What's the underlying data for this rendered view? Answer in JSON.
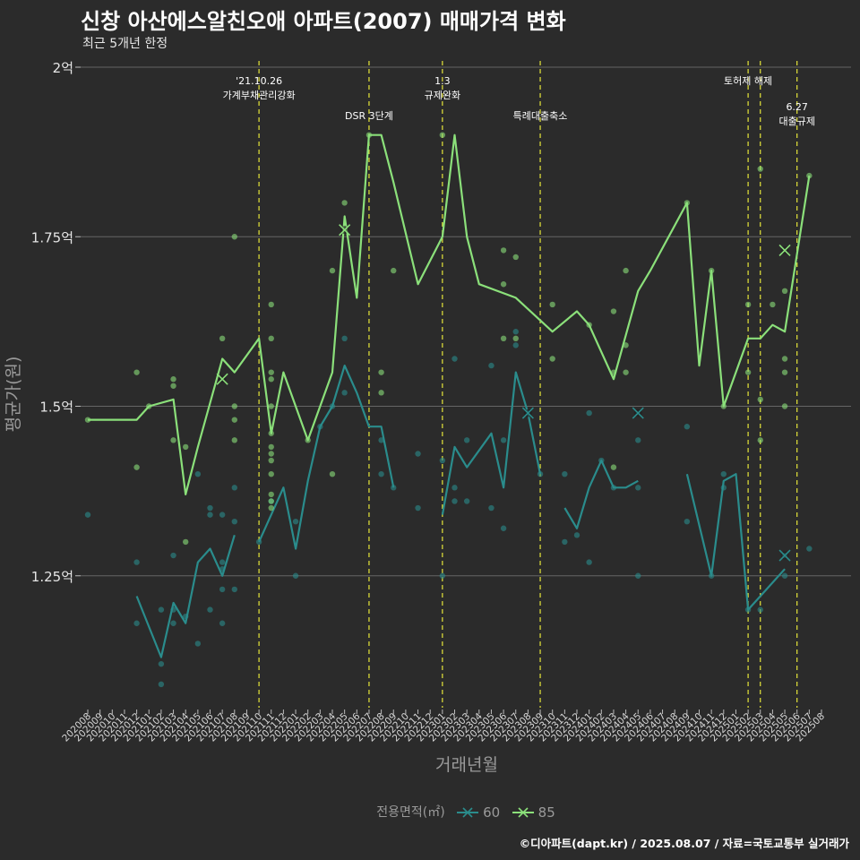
{
  "title": "신창 아산에스알친오애 아파트(2007) 매매가격 변화",
  "subtitle": "최근 5개년 한정",
  "caption": "©디아파트(dapt.kr) / 2025.08.07 / 자료=국토교통부 실거래가",
  "chart_data": {
    "type": "line",
    "xlabel": "거래년월",
    "ylabel": "평균가(원)",
    "x": [
      "202008",
      "202009",
      "202010",
      "202011",
      "202012",
      "202101",
      "202102",
      "202103",
      "202104",
      "202105",
      "202106",
      "202107",
      "202108",
      "202109",
      "202110",
      "202111",
      "202112",
      "202201",
      "202202",
      "202203",
      "202204",
      "202205",
      "202206",
      "202207",
      "202208",
      "202209",
      "202210",
      "202211",
      "202212",
      "202301",
      "202302",
      "202303",
      "202304",
      "202305",
      "202306",
      "202307",
      "202308",
      "202309",
      "202310",
      "202311",
      "202312",
      "202401",
      "202402",
      "202403",
      "202404",
      "202405",
      "202406",
      "202407",
      "202408",
      "202409",
      "202410",
      "202411",
      "202412",
      "202501",
      "202502",
      "202503",
      "202504",
      "202505",
      "202506",
      "202507",
      "202508"
    ],
    "yticks": [
      1.25,
      1.5,
      1.75,
      2.0
    ],
    "ytick_labels": [
      "1.25억",
      "1.5억",
      "1.75억",
      "2억"
    ],
    "ylim": [
      1.06,
      2.0
    ],
    "grid": true,
    "legend": {
      "title": "전용면적(㎡)",
      "placement": "bottom"
    },
    "colors": {
      "60": "#2a8c8c",
      "85": "#8be07a",
      "vline": "#e6e63a",
      "grid": "#666666"
    },
    "series": [
      {
        "name": "60",
        "line": [
          [
            [
              "202012",
              1.22
            ],
            [
              "202102",
              1.13
            ],
            [
              "202103",
              1.21
            ],
            [
              "202104",
              1.18
            ],
            [
              "202105",
              1.27
            ],
            [
              "202106",
              1.29
            ],
            [
              "202107",
              1.25
            ],
            [
              "202108",
              1.31
            ]
          ],
          [
            [
              "202110",
              1.3
            ],
            [
              "202112",
              1.38
            ],
            [
              "202201",
              1.29
            ],
            [
              "202202",
              1.39
            ],
            [
              "202203",
              1.47
            ],
            [
              "202204",
              1.5
            ],
            [
              "202205",
              1.56
            ],
            [
              "202206",
              1.52
            ],
            [
              "202207",
              1.47
            ],
            [
              "202208",
              1.47
            ],
            [
              "202209",
              1.38
            ]
          ],
          [
            [
              "202301",
              1.34
            ],
            [
              "202302",
              1.44
            ],
            [
              "202303",
              1.41
            ],
            [
              "202305",
              1.46
            ],
            [
              "202306",
              1.38
            ],
            [
              "202307",
              1.55
            ],
            [
              "202308",
              1.49
            ],
            [
              "202309",
              1.4
            ]
          ],
          [
            [
              "202311",
              1.35
            ],
            [
              "202312",
              1.32
            ],
            [
              "202401",
              1.38
            ],
            [
              "202402",
              1.42
            ],
            [
              "202403",
              1.38
            ],
            [
              "202404",
              1.38
            ],
            [
              "202405",
              1.39
            ]
          ],
          [
            [
              "202409",
              1.4
            ],
            [
              "202411",
              1.25
            ],
            [
              "202412",
              1.39
            ],
            [
              "202501",
              1.4
            ],
            [
              "202502",
              1.2
            ],
            [
              "202505",
              1.26
            ]
          ]
        ],
        "points": [
          [
            "202008",
            1.34
          ],
          [
            "202012",
            1.27
          ],
          [
            "202012",
            1.18
          ],
          [
            "202102",
            1.2
          ],
          [
            "202102",
            1.12
          ],
          [
            "202102",
            1.09
          ],
          [
            "202103",
            1.28
          ],
          [
            "202103",
            1.2
          ],
          [
            "202103",
            1.18
          ],
          [
            "202104",
            1.19
          ],
          [
            "202105",
            1.4
          ],
          [
            "202105",
            1.15
          ],
          [
            "202106",
            1.35
          ],
          [
            "202106",
            1.34
          ],
          [
            "202106",
            1.2
          ],
          [
            "202107",
            1.34
          ],
          [
            "202107",
            1.27
          ],
          [
            "202107",
            1.26
          ],
          [
            "202107",
            1.23
          ],
          [
            "202107",
            1.18
          ],
          [
            "202108",
            1.38
          ],
          [
            "202108",
            1.33
          ],
          [
            "202108",
            1.23
          ],
          [
            "202110",
            1.3
          ],
          [
            "202111",
            1.36
          ],
          [
            "202201",
            1.33
          ],
          [
            "202201",
            1.25
          ],
          [
            "202203",
            1.47
          ],
          [
            "202204",
            1.5
          ],
          [
            "202205",
            1.6
          ],
          [
            "202205",
            1.52
          ],
          [
            "202208",
            1.45
          ],
          [
            "202208",
            1.4
          ],
          [
            "202209",
            1.38
          ],
          [
            "202211",
            1.43
          ],
          [
            "202211",
            1.35
          ],
          [
            "202301",
            1.42
          ],
          [
            "202301",
            1.25
          ],
          [
            "202302",
            1.57
          ],
          [
            "202302",
            1.38
          ],
          [
            "202302",
            1.36
          ],
          [
            "202303",
            1.45
          ],
          [
            "202303",
            1.36
          ],
          [
            "202305",
            1.56
          ],
          [
            "202305",
            1.35
          ],
          [
            "202306",
            1.45
          ],
          [
            "202306",
            1.32
          ],
          [
            "202307",
            1.61
          ],
          [
            "202307",
            1.59
          ],
          [
            "202309",
            1.4
          ],
          [
            "202311",
            1.4
          ],
          [
            "202311",
            1.3
          ],
          [
            "202312",
            1.31
          ],
          [
            "202401",
            1.49
          ],
          [
            "202401",
            1.27
          ],
          [
            "202402",
            1.42
          ],
          [
            "202403",
            1.38
          ],
          [
            "202405",
            1.45
          ],
          [
            "202405",
            1.38
          ],
          [
            "202405",
            1.25
          ],
          [
            "202409",
            1.47
          ],
          [
            "202409",
            1.33
          ],
          [
            "202411",
            1.25
          ],
          [
            "202412",
            1.4
          ],
          [
            "202412",
            1.38
          ],
          [
            "202502",
            1.2
          ],
          [
            "202503",
            1.2
          ],
          [
            "202505",
            1.28
          ],
          [
            "202505",
            1.25
          ],
          [
            "202507",
            1.29
          ]
        ],
        "cross_points": [
          [
            "202308",
            1.49
          ],
          [
            "202405",
            1.49
          ],
          [
            "202505",
            1.28
          ]
        ]
      },
      {
        "name": "85",
        "line": [
          [
            [
              "202008",
              1.48
            ],
            [
              "202011",
              1.48
            ],
            [
              "202012",
              1.48
            ],
            [
              "202101",
              1.5
            ],
            [
              "202103",
              1.51
            ],
            [
              "202104",
              1.37
            ],
            [
              "202105",
              1.44
            ],
            [
              "202107",
              1.57
            ],
            [
              "202108",
              1.55
            ],
            [
              "202110",
              1.6
            ],
            [
              "202111",
              1.46
            ],
            [
              "202112",
              1.55
            ],
            [
              "202202",
              1.45
            ],
            [
              "202204",
              1.55
            ],
            [
              "202205",
              1.78
            ],
            [
              "202206",
              1.66
            ],
            [
              "202207",
              1.9
            ],
            [
              "202208",
              1.9
            ],
            [
              "202209",
              1.83
            ],
            [
              "202211",
              1.68
            ],
            [
              "202301",
              1.75
            ],
            [
              "202302",
              1.9
            ],
            [
              "202303",
              1.75
            ],
            [
              "202304",
              1.68
            ],
            [
              "202307",
              1.66
            ],
            [
              "202310",
              1.61
            ],
            [
              "202312",
              1.64
            ],
            [
              "202401",
              1.62
            ],
            [
              "202403",
              1.54
            ],
            [
              "202405",
              1.67
            ],
            [
              "202406",
              1.7
            ],
            [
              "202409",
              1.8
            ],
            [
              "202410",
              1.56
            ],
            [
              "202411",
              1.7
            ],
            [
              "202412",
              1.5
            ],
            [
              "202502",
              1.6
            ],
            [
              "202503",
              1.6
            ],
            [
              "202504",
              1.62
            ],
            [
              "202505",
              1.61
            ],
            [
              "202507",
              1.84
            ]
          ]
        ],
        "points": [
          [
            "202008",
            1.48
          ],
          [
            "202012",
            1.55
          ],
          [
            "202012",
            1.41
          ],
          [
            "202101",
            1.5
          ],
          [
            "202103",
            1.54
          ],
          [
            "202103",
            1.53
          ],
          [
            "202103",
            1.45
          ],
          [
            "202104",
            1.44
          ],
          [
            "202104",
            1.3
          ],
          [
            "202107",
            1.6
          ],
          [
            "202108",
            1.75
          ],
          [
            "202108",
            1.5
          ],
          [
            "202108",
            1.48
          ],
          [
            "202108",
            1.45
          ],
          [
            "202111",
            1.65
          ],
          [
            "202111",
            1.6
          ],
          [
            "202111",
            1.55
          ],
          [
            "202111",
            1.54
          ],
          [
            "202111",
            1.5
          ],
          [
            "202111",
            1.46
          ],
          [
            "202111",
            1.44
          ],
          [
            "202111",
            1.43
          ],
          [
            "202111",
            1.42
          ],
          [
            "202111",
            1.4
          ],
          [
            "202111",
            1.37
          ],
          [
            "202111",
            1.36
          ],
          [
            "202111",
            1.35
          ],
          [
            "202202",
            1.45
          ],
          [
            "202204",
            1.7
          ],
          [
            "202204",
            1.4
          ],
          [
            "202205",
            1.8
          ],
          [
            "202207",
            1.9
          ],
          [
            "202208",
            1.55
          ],
          [
            "202208",
            1.52
          ],
          [
            "202209",
            1.7
          ],
          [
            "202301",
            1.9
          ],
          [
            "202306",
            1.73
          ],
          [
            "202306",
            1.68
          ],
          [
            "202306",
            1.6
          ],
          [
            "202307",
            1.72
          ],
          [
            "202307",
            1.6
          ],
          [
            "202310",
            1.65
          ],
          [
            "202310",
            1.57
          ],
          [
            "202401",
            1.62
          ],
          [
            "202403",
            1.64
          ],
          [
            "202403",
            1.55
          ],
          [
            "202403",
            1.41
          ],
          [
            "202404",
            1.7
          ],
          [
            "202404",
            1.59
          ],
          [
            "202404",
            1.55
          ],
          [
            "202409",
            1.8
          ],
          [
            "202411",
            1.7
          ],
          [
            "202412",
            1.5
          ],
          [
            "202502",
            1.65
          ],
          [
            "202502",
            1.55
          ],
          [
            "202503",
            1.85
          ],
          [
            "202503",
            1.51
          ],
          [
            "202503",
            1.45
          ],
          [
            "202504",
            1.65
          ],
          [
            "202505",
            1.67
          ],
          [
            "202505",
            1.57
          ],
          [
            "202505",
            1.55
          ],
          [
            "202505",
            1.5
          ],
          [
            "202507",
            1.84
          ]
        ],
        "cross_points": [
          [
            "202107",
            1.54
          ],
          [
            "202205",
            1.76
          ],
          [
            "202505",
            1.73
          ]
        ]
      }
    ],
    "events": [
      {
        "x": "202110",
        "label": [
          "'21.10.26",
          "가계부채관리강화"
        ],
        "row": 0
      },
      {
        "x": "202207",
        "label": [
          "DSR 3단계"
        ],
        "row": 1
      },
      {
        "x": "202301",
        "label": [
          "1.3",
          "규제완화"
        ],
        "row": 0
      },
      {
        "x": "202309",
        "label": [
          "특례대출축소"
        ],
        "row": 1
      },
      {
        "x": "202502",
        "label": [
          "토허제 해제"
        ],
        "row": 0
      },
      {
        "x": "202503",
        "label": [],
        "row": 0
      },
      {
        "x": "202506",
        "label": [
          "6.27",
          "대출규제"
        ],
        "row": 1
      }
    ]
  }
}
